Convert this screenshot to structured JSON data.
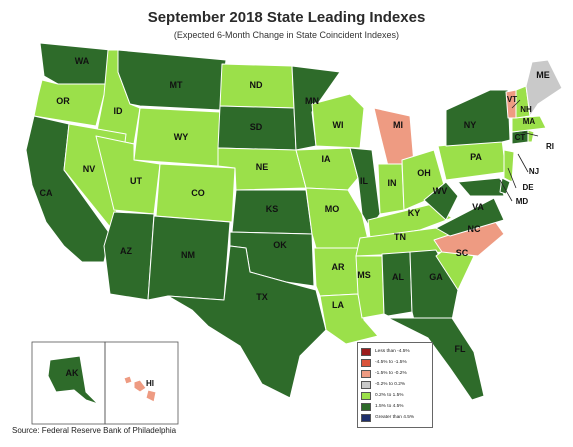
{
  "title": "September 2018 State Leading Indexes",
  "subtitle": "(Expected 6-Month Change in State Coincident Indexes)",
  "source": "Source: Federal Reserve Bank of Philadelphia",
  "colors": {
    "dark_red": "#9b1c1c",
    "red": "#d9533a",
    "salmon": "#ee9b82",
    "grey": "#c9c9c9",
    "light_green": "#9be04a",
    "dark_green": "#2e6b2a",
    "navy": "#1f2f6b"
  },
  "legend": [
    {
      "label": "Less than -4.5%",
      "color": "#9b1c1c"
    },
    {
      "label": "-4.5% to -1.5%",
      "color": "#d9533a"
    },
    {
      "label": "-1.5% to -0.2%",
      "color": "#ee9b82"
    },
    {
      "label": "-0.2% to 0.2%",
      "color": "#c9c9c9"
    },
    {
      "label": "0.2% to 1.5%",
      "color": "#9be04a"
    },
    {
      "label": "1.5% to 4.5%",
      "color": "#2e6b2a"
    },
    {
      "label": "Greater than 4.5%",
      "color": "#1f2f6b"
    }
  ],
  "states": [
    {
      "abbr": "WA",
      "category": "1.5% to 4.5%"
    },
    {
      "abbr": "OR",
      "category": "0.2% to 1.5%"
    },
    {
      "abbr": "CA",
      "category": "1.5% to 4.5%"
    },
    {
      "abbr": "ID",
      "category": "0.2% to 1.5%"
    },
    {
      "abbr": "NV",
      "category": "0.2% to 1.5%"
    },
    {
      "abbr": "MT",
      "category": "1.5% to 4.5%"
    },
    {
      "abbr": "WY",
      "category": "0.2% to 1.5%"
    },
    {
      "abbr": "UT",
      "category": "0.2% to 1.5%"
    },
    {
      "abbr": "AZ",
      "category": "1.5% to 4.5%"
    },
    {
      "abbr": "CO",
      "category": "0.2% to 1.5%"
    },
    {
      "abbr": "NM",
      "category": "1.5% to 4.5%"
    },
    {
      "abbr": "ND",
      "category": "0.2% to 1.5%"
    },
    {
      "abbr": "SD",
      "category": "1.5% to 4.5%"
    },
    {
      "abbr": "NE",
      "category": "0.2% to 1.5%"
    },
    {
      "abbr": "KS",
      "category": "1.5% to 4.5%"
    },
    {
      "abbr": "OK",
      "category": "1.5% to 4.5%"
    },
    {
      "abbr": "TX",
      "category": "1.5% to 4.5%"
    },
    {
      "abbr": "MN",
      "category": "1.5% to 4.5%"
    },
    {
      "abbr": "IA",
      "category": "0.2% to 1.5%"
    },
    {
      "abbr": "MO",
      "category": "0.2% to 1.5%"
    },
    {
      "abbr": "AR",
      "category": "0.2% to 1.5%"
    },
    {
      "abbr": "LA",
      "category": "0.2% to 1.5%"
    },
    {
      "abbr": "WI",
      "category": "0.2% to 1.5%"
    },
    {
      "abbr": "IL",
      "category": "1.5% to 4.5%"
    },
    {
      "abbr": "MI",
      "category": "-1.5% to -0.2%"
    },
    {
      "abbr": "IN",
      "category": "0.2% to 1.5%"
    },
    {
      "abbr": "OH",
      "category": "0.2% to 1.5%"
    },
    {
      "abbr": "KY",
      "category": "0.2% to 1.5%"
    },
    {
      "abbr": "TN",
      "category": "0.2% to 1.5%"
    },
    {
      "abbr": "MS",
      "category": "0.2% to 1.5%"
    },
    {
      "abbr": "AL",
      "category": "1.5% to 4.5%"
    },
    {
      "abbr": "GA",
      "category": "1.5% to 4.5%"
    },
    {
      "abbr": "FL",
      "category": "1.5% to 4.5%"
    },
    {
      "abbr": "SC",
      "category": "0.2% to 1.5%"
    },
    {
      "abbr": "NC",
      "category": "-1.5% to -0.2%"
    },
    {
      "abbr": "VA",
      "category": "1.5% to 4.5%"
    },
    {
      "abbr": "WV",
      "category": "1.5% to 4.5%"
    },
    {
      "abbr": "PA",
      "category": "0.2% to 1.5%"
    },
    {
      "abbr": "NY",
      "category": "1.5% to 4.5%"
    },
    {
      "abbr": "MD",
      "category": "1.5% to 4.5%"
    },
    {
      "abbr": "DE",
      "category": "1.5% to 4.5%"
    },
    {
      "abbr": "NJ",
      "category": "0.2% to 1.5%"
    },
    {
      "abbr": "CT",
      "category": "1.5% to 4.5%"
    },
    {
      "abbr": "RI",
      "category": "0.2% to 1.5%"
    },
    {
      "abbr": "MA",
      "category": "0.2% to 1.5%"
    },
    {
      "abbr": "VT",
      "category": "-1.5% to -0.2%"
    },
    {
      "abbr": "NH",
      "category": "0.2% to 1.5%"
    },
    {
      "abbr": "ME",
      "category": "-0.2% to 0.2%"
    },
    {
      "abbr": "AK",
      "category": "1.5% to 4.5%"
    },
    {
      "abbr": "HI",
      "category": "-1.5% to -0.2%"
    }
  ]
}
